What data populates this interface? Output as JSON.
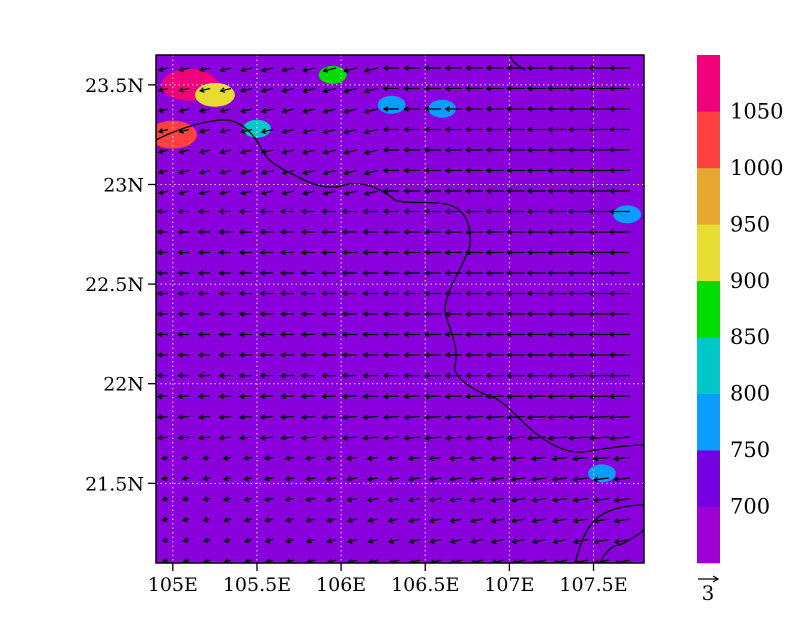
{
  "chart_data": {
    "type": "heatmap",
    "title": "",
    "xlabel": "",
    "ylabel": "",
    "xlim": [
      104.9,
      107.8
    ],
    "ylim": [
      21.1,
      23.65
    ],
    "x_ticks": [
      {
        "value": 105.0,
        "label": "105E"
      },
      {
        "value": 105.5,
        "label": "105.5E"
      },
      {
        "value": 106.0,
        "label": "106E"
      },
      {
        "value": 106.5,
        "label": "106.5E"
      },
      {
        "value": 107.0,
        "label": "107E"
      },
      {
        "value": 107.5,
        "label": "107.5E"
      }
    ],
    "y_ticks": [
      {
        "value": 21.5,
        "label": "21.5N"
      },
      {
        "value": 22.0,
        "label": "22N"
      },
      {
        "value": 22.5,
        "label": "22.5N"
      },
      {
        "value": 23.0,
        "label": "23N"
      },
      {
        "value": 23.5,
        "label": "23.5N"
      }
    ],
    "grid": true,
    "background_level_color": "#8a00dc",
    "colorbar": {
      "placement": "right",
      "labels": [
        "700",
        "750",
        "800",
        "850",
        "900",
        "950",
        "1000",
        "1050"
      ],
      "colors": [
        "#9e00d4",
        "#7400e0",
        "#0a9cff",
        "#00c8c8",
        "#00dc00",
        "#e6dc32",
        "#e6a830",
        "#ff4040",
        "#f0007a"
      ]
    },
    "high_value_patches": [
      {
        "lon": 105.1,
        "lat": 23.5,
        "color": "#f0007a"
      },
      {
        "lon": 105.0,
        "lat": 23.25,
        "color": "#ff4040"
      },
      {
        "lon": 105.25,
        "lat": 23.45,
        "color": "#e6dc32"
      },
      {
        "lon": 105.5,
        "lat": 23.28,
        "color": "#00c8c8"
      },
      {
        "lon": 105.95,
        "lat": 23.55,
        "color": "#00dc00"
      },
      {
        "lon": 106.3,
        "lat": 23.4,
        "color": "#0a9cff"
      },
      {
        "lon": 106.6,
        "lat": 23.38,
        "color": "#0a9cff"
      },
      {
        "lon": 107.7,
        "lat": 22.85,
        "color": "#0a9cff"
      },
      {
        "lon": 107.55,
        "lat": 21.55,
        "color": "#0a9cff"
      }
    ],
    "vector_reference": {
      "label": "3"
    }
  }
}
